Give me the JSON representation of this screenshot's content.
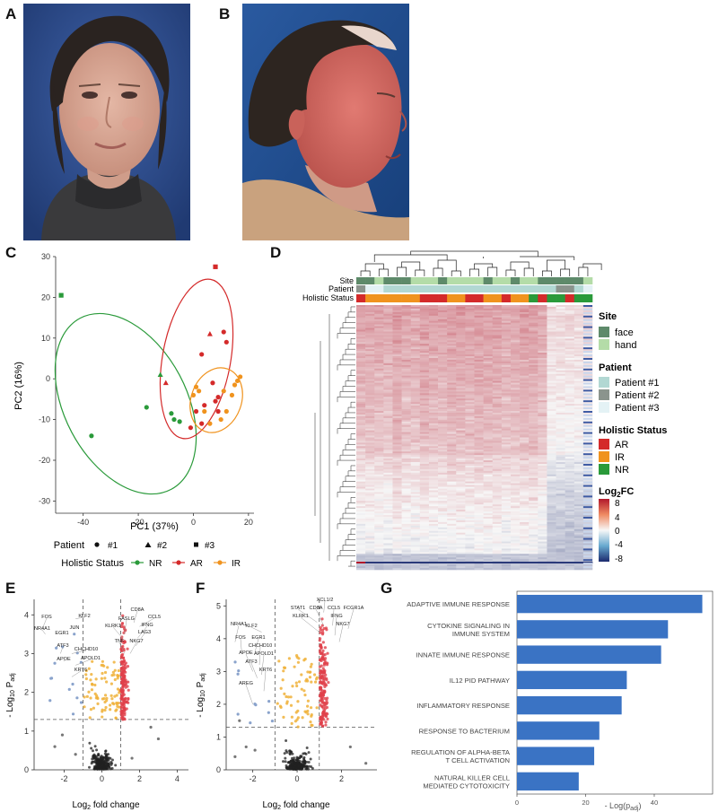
{
  "panels": {
    "A": "A",
    "B": "B",
    "C": "C",
    "D": "D",
    "E": "E",
    "F": "F",
    "G": "G"
  },
  "photos": {
    "A": {
      "bg": "#2d4a8a",
      "skin": "#d9a896",
      "hair": "#2a2320",
      "cloth": "#3a3a3c"
    },
    "B": {
      "bg": "#1f4d8c",
      "skin": "#d46a62",
      "hair": "#2d2520",
      "cloth": "#c9a27e"
    }
  },
  "pca": {
    "xlabel": "PC1 (37%)",
    "ylabel": "PC2 (16%)",
    "xticks": [
      "-40",
      "-20",
      "0",
      "20"
    ],
    "yticks": [
      "-30",
      "-20",
      "-10",
      "0",
      "10",
      "20",
      "30"
    ],
    "patient_legend_title": "Patient",
    "patient_legend": [
      "#1",
      "#2",
      "#3"
    ],
    "status_legend_title": "Holistic Status",
    "status_legend": [
      "NR",
      "AR",
      "IR"
    ],
    "colors": {
      "NR": "#2a9a3a",
      "AR": "#d42a2a",
      "IR": "#f0931e"
    }
  },
  "heatmap": {
    "row_labels": [
      "Site",
      "Patient",
      "Holistic Status"
    ],
    "legend": {
      "site_title": "Site",
      "site": [
        "face",
        "hand"
      ],
      "patient_title": "Patient",
      "patient": [
        "Patient #1",
        "Patient #2",
        "Patient #3"
      ],
      "status_title": "Holistic Status",
      "status": [
        "AR",
        "IR",
        "NR"
      ],
      "fc_title": "Log",
      "fc_sub": "2",
      "fc_title_end": "FC",
      "fc_ticks": [
        "8",
        "4",
        "0",
        "-4",
        "-8"
      ]
    },
    "colors": {
      "face": "#5e8a6a",
      "hand": "#b4dca8",
      "p1": "#b2d8d3",
      "p2": "#8b948d",
      "p3": "#e4f2f5",
      "AR": "#d42a2a",
      "IR": "#f0931e",
      "NR": "#2a9a3a"
    }
  },
  "volcanoE": {
    "xlabel_pre": "Log",
    "xlabel_sub": "2",
    "xlabel_post": " fold change",
    "ylabel_pre": "- Log",
    "ylabel_sub": "10",
    "ylabel_post": " P",
    "ylabel_subscript2": "adj",
    "xticks": [
      "-2",
      "0",
      "2",
      "4"
    ],
    "yticks": [
      "0",
      "1",
      "2",
      "3",
      "4"
    ],
    "labels_up": [
      "CD8A",
      "CCL5",
      "FASLG",
      "IFNG",
      "KLRK1",
      "LAG3",
      "TNF",
      "NKG7"
    ],
    "labels_down": [
      "FOS",
      "KLF2",
      "NR4A1",
      "JUN",
      "EGR1",
      "ATF3",
      "CHCHD10",
      "APOE",
      "APOLD1",
      "KRT6"
    ]
  },
  "volcanoF": {
    "xlabel_pre": "Log",
    "xlabel_sub": "2",
    "xlabel_post": " fold change",
    "ylabel_pre": "- Log",
    "ylabel_sub": "10",
    "ylabel_post": " P",
    "ylabel_subscript2": "adj",
    "xticks": [
      "-2",
      "0",
      "2"
    ],
    "yticks": [
      "0",
      "1",
      "2",
      "3",
      "4",
      "5"
    ],
    "labels_up": [
      "XCL1/2",
      "STAT1",
      "CD8A",
      "CCL5",
      "FCGR1A",
      "KLRK1",
      "IFNG",
      "NKG7"
    ],
    "labels_down": [
      "NR4A1",
      "KLF2",
      "FOS",
      "EGR1",
      "CHCHD10",
      "APOE",
      "APOLD1",
      "ATF3",
      "KRT6",
      "AREG"
    ]
  },
  "chart_data": [
    {
      "type": "bar",
      "orientation": "horizontal",
      "title": "",
      "xlabel": "- Log(p_adj)",
      "categories": [
        "ADAPTIVE IMMUNE RESPONSE",
        "CYTOKINE SIGNALING IN IMMUNE SYSTEM",
        "INNATE IMMUNE RESPONSE",
        "IL12 PID PATHWAY",
        "INFLAMMATORY RESPONSE",
        "RESPONSE TO BACTERIUM",
        "REGULATION OF ALPHA-BETA T CELL ACTIVATION",
        "NATURAL KILLER CELL MEDIATED CYTOTOXICITY"
      ],
      "values": [
        54,
        44,
        42,
        32,
        30.5,
        24,
        22.5,
        18
      ],
      "xlim": [
        0,
        57
      ],
      "xticks": [
        "0",
        "20",
        "40"
      ],
      "color": "#3a73c4"
    },
    {
      "type": "scatter",
      "title": "PCA",
      "xlabel": "PC1 (37%)",
      "ylabel": "PC2 (16%)",
      "xlim": [
        -50,
        22
      ],
      "ylim": [
        -33,
        30
      ],
      "series": [
        {
          "name": "NR",
          "points": [
            [
              -48,
              20.5,
              "sq"
            ],
            [
              -37,
              -14,
              "c"
            ],
            [
              -17,
              -7,
              "c"
            ],
            [
              -12,
              1,
              "t"
            ],
            [
              -8,
              -8.5,
              "c"
            ],
            [
              -7,
              -10,
              "c"
            ],
            [
              -5,
              -10.5,
              "c"
            ]
          ]
        },
        {
          "name": "AR",
          "points": [
            [
              8,
              27.5,
              "sq"
            ],
            [
              6,
              11,
              "t"
            ],
            [
              11,
              11.5,
              "c"
            ],
            [
              12,
              9,
              "c"
            ],
            [
              3,
              6,
              "c"
            ],
            [
              -10,
              -1,
              "t"
            ],
            [
              7,
              -1,
              "c"
            ],
            [
              1,
              -8,
              "c"
            ],
            [
              4,
              -6.5,
              "c"
            ],
            [
              8,
              -5.5,
              "c"
            ],
            [
              9,
              -8,
              "c"
            ],
            [
              3,
              -11,
              "c"
            ],
            [
              -1,
              -12,
              "c"
            ],
            [
              9,
              -4.5,
              "c"
            ]
          ]
        },
        {
          "name": "IR",
          "points": [
            [
              1,
              -2,
              "c"
            ],
            [
              0,
              -4,
              "c"
            ],
            [
              11,
              -3,
              "c"
            ],
            [
              15,
              -1.5,
              "c"
            ],
            [
              16,
              -0.5,
              "c"
            ],
            [
              17,
              0.5,
              "c"
            ],
            [
              14,
              -4,
              "c"
            ],
            [
              12,
              -8,
              "c"
            ],
            [
              4,
              -8,
              "c"
            ],
            [
              6,
              -11,
              "c"
            ],
            [
              10,
              -10,
              "c"
            ],
            [
              2,
              -3,
              "c"
            ]
          ]
        }
      ]
    }
  ]
}
